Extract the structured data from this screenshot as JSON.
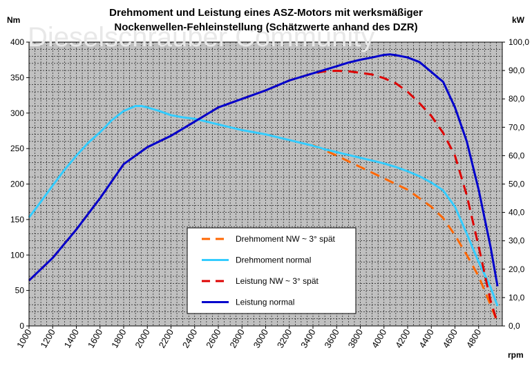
{
  "chart_data": {
    "type": "line",
    "title": [
      "Drehmoment und Leistung eines ASZ-Motors mit werksmäßiger",
      "Nockenwellen-Fehleinstellung (Schätzwerte anhand des DZR)"
    ],
    "watermark": "Dieselschrauber Community",
    "y_left_label": "Nm",
    "y_right_label": "kW",
    "x_unit_label": "rpm",
    "xlim": [
      1000,
      5000
    ],
    "ylim_left": [
      0,
      400
    ],
    "ylim_right": [
      0,
      100
    ],
    "x_ticks": [
      "1000",
      "1200",
      "1400",
      "1600",
      "1800",
      "2000",
      "2200",
      "2400",
      "2600",
      "2800",
      "3000",
      "3200",
      "3400",
      "3600",
      "3800",
      "4000",
      "4200",
      "4400",
      "4600",
      "4800"
    ],
    "y_left_ticks": [
      "0",
      "50",
      "100",
      "150",
      "200",
      "250",
      "300",
      "350",
      "400"
    ],
    "y_right_ticks": [
      "0,0",
      "10,0",
      "20,0",
      "30,0",
      "40,0",
      "50,0",
      "60,0",
      "70,0",
      "80,0",
      "90,0",
      "100,0"
    ],
    "grid": true,
    "plot_background": "#c0c0c0",
    "legend_position": "lower-center",
    "series": [
      {
        "name": "Drehmoment NW ~ 3° spät",
        "axis": "left",
        "color": "#ff6600",
        "dashed": true,
        "x": [
          3400,
          3600,
          3800,
          4000,
          4200,
          4400,
          4500,
          4600,
          4700,
          4800,
          4900,
          4960
        ],
        "y": [
          255,
          240,
          224,
          208,
          192,
          168,
          152,
          128,
          100,
          70,
          30,
          5
        ]
      },
      {
        "name": "Drehmoment normal",
        "axis": "left",
        "color": "#33ccff",
        "dashed": false,
        "x": [
          1000,
          1100,
          1200,
          1300,
          1400,
          1500,
          1600,
          1700,
          1800,
          1900,
          1950,
          2000,
          2100,
          2200,
          2300,
          2400,
          2500,
          2600,
          2700,
          2800,
          2900,
          3000,
          3100,
          3200,
          3300,
          3400,
          3500,
          3600,
          3700,
          3800,
          3900,
          4000,
          4100,
          4200,
          4300,
          4400,
          4500,
          4600,
          4700,
          4800,
          4900,
          4960
        ],
        "y": [
          153,
          175,
          198,
          220,
          240,
          258,
          273,
          290,
          303,
          310,
          310,
          308,
          303,
          297,
          294,
          292,
          288,
          284,
          280,
          276,
          273,
          270,
          266,
          262,
          258,
          254,
          249,
          245,
          241,
          237,
          233,
          229,
          224,
          218,
          211,
          202,
          191,
          168,
          130,
          90,
          55,
          28
        ]
      },
      {
        "name": "Leistung NW ~ 3° spät",
        "axis": "right",
        "color": "#dd0000",
        "dashed": true,
        "x": [
          1000,
          1200,
          1400,
          1600,
          1800,
          2000,
          2200,
          2400,
          2600,
          2800,
          3000,
          3200,
          3400,
          3500,
          3600,
          3700,
          3800,
          3900,
          4000,
          4100,
          4200,
          4300,
          4400,
          4500,
          4600,
          4700,
          4800,
          4900,
          4960
        ],
        "y": [
          16,
          24,
          34,
          45,
          57,
          63,
          67,
          72,
          77,
          80,
          83,
          86.5,
          89,
          89.7,
          89.9,
          89.7,
          89.2,
          88.6,
          87.3,
          85.5,
          82.5,
          78.5,
          74,
          68,
          60,
          46,
          28,
          9,
          1
        ]
      },
      {
        "name": "Leistung normal",
        "axis": "right",
        "color": "#0000cc",
        "dashed": false,
        "x": [
          1000,
          1200,
          1400,
          1600,
          1800,
          2000,
          2200,
          2400,
          2600,
          2800,
          3000,
          3200,
          3400,
          3600,
          3700,
          3800,
          3900,
          4000,
          4050,
          4100,
          4200,
          4300,
          4400,
          4500,
          4600,
          4700,
          4800,
          4900,
          4960
        ],
        "y": [
          16,
          24,
          34,
          45,
          57,
          63,
          67,
          72,
          77,
          80,
          83,
          86.5,
          89,
          91.5,
          92.8,
          93.8,
          94.6,
          95.5,
          95.7,
          95.4,
          94.6,
          93,
          89.5,
          86,
          77,
          65,
          48,
          28,
          14
        ]
      }
    ]
  }
}
